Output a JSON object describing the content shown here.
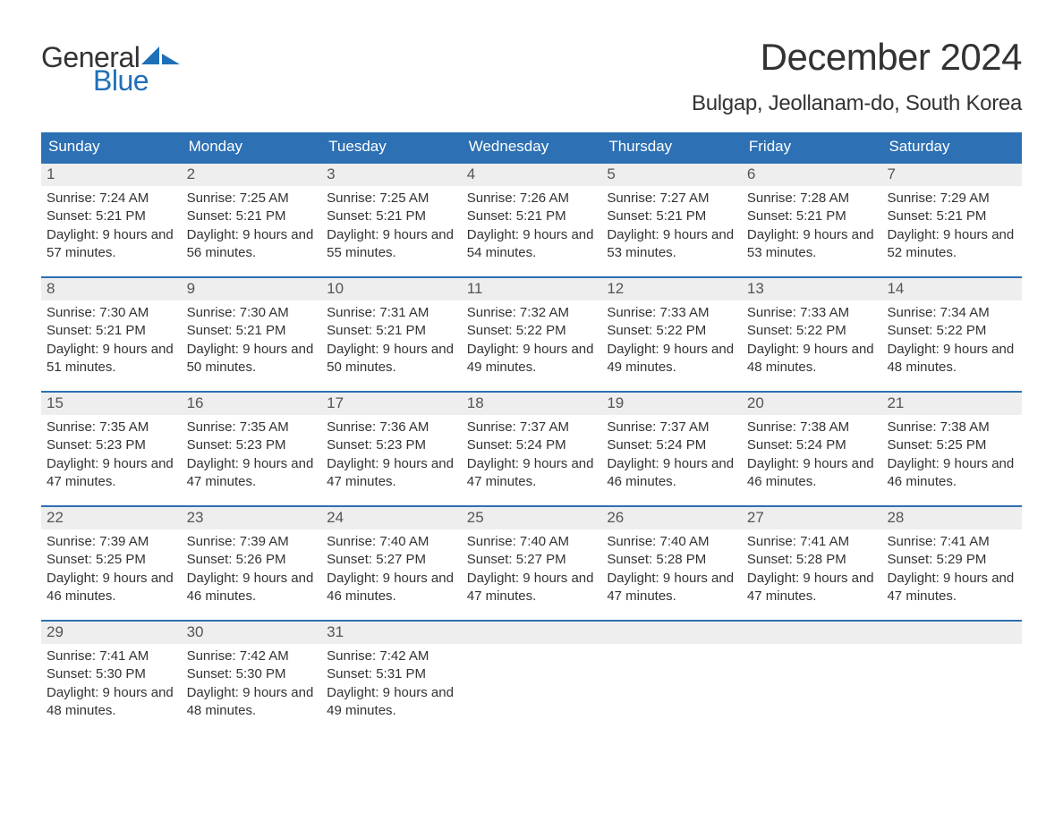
{
  "logo": {
    "text1": "General",
    "text2": "Blue",
    "sail_color": "#2070b8"
  },
  "title": "December 2024",
  "location": "Bulgap, Jeollanam-do, South Korea",
  "colors": {
    "header_bg": "#2d70b3",
    "header_text": "#ffffff",
    "week_border": "#2d70b3",
    "daynum_bg": "#eeeeee",
    "text": "#333333"
  },
  "dow": [
    "Sunday",
    "Monday",
    "Tuesday",
    "Wednesday",
    "Thursday",
    "Friday",
    "Saturday"
  ],
  "weeks": [
    [
      {
        "n": "1",
        "sunrise": "7:24 AM",
        "sunset": "5:21 PM",
        "dl": "9 hours and 57 minutes."
      },
      {
        "n": "2",
        "sunrise": "7:25 AM",
        "sunset": "5:21 PM",
        "dl": "9 hours and 56 minutes."
      },
      {
        "n": "3",
        "sunrise": "7:25 AM",
        "sunset": "5:21 PM",
        "dl": "9 hours and 55 minutes."
      },
      {
        "n": "4",
        "sunrise": "7:26 AM",
        "sunset": "5:21 PM",
        "dl": "9 hours and 54 minutes."
      },
      {
        "n": "5",
        "sunrise": "7:27 AM",
        "sunset": "5:21 PM",
        "dl": "9 hours and 53 minutes."
      },
      {
        "n": "6",
        "sunrise": "7:28 AM",
        "sunset": "5:21 PM",
        "dl": "9 hours and 53 minutes."
      },
      {
        "n": "7",
        "sunrise": "7:29 AM",
        "sunset": "5:21 PM",
        "dl": "9 hours and 52 minutes."
      }
    ],
    [
      {
        "n": "8",
        "sunrise": "7:30 AM",
        "sunset": "5:21 PM",
        "dl": "9 hours and 51 minutes."
      },
      {
        "n": "9",
        "sunrise": "7:30 AM",
        "sunset": "5:21 PM",
        "dl": "9 hours and 50 minutes."
      },
      {
        "n": "10",
        "sunrise": "7:31 AM",
        "sunset": "5:21 PM",
        "dl": "9 hours and 50 minutes."
      },
      {
        "n": "11",
        "sunrise": "7:32 AM",
        "sunset": "5:22 PM",
        "dl": "9 hours and 49 minutes."
      },
      {
        "n": "12",
        "sunrise": "7:33 AM",
        "sunset": "5:22 PM",
        "dl": "9 hours and 49 minutes."
      },
      {
        "n": "13",
        "sunrise": "7:33 AM",
        "sunset": "5:22 PM",
        "dl": "9 hours and 48 minutes."
      },
      {
        "n": "14",
        "sunrise": "7:34 AM",
        "sunset": "5:22 PM",
        "dl": "9 hours and 48 minutes."
      }
    ],
    [
      {
        "n": "15",
        "sunrise": "7:35 AM",
        "sunset": "5:23 PM",
        "dl": "9 hours and 47 minutes."
      },
      {
        "n": "16",
        "sunrise": "7:35 AM",
        "sunset": "5:23 PM",
        "dl": "9 hours and 47 minutes."
      },
      {
        "n": "17",
        "sunrise": "7:36 AM",
        "sunset": "5:23 PM",
        "dl": "9 hours and 47 minutes."
      },
      {
        "n": "18",
        "sunrise": "7:37 AM",
        "sunset": "5:24 PM",
        "dl": "9 hours and 47 minutes."
      },
      {
        "n": "19",
        "sunrise": "7:37 AM",
        "sunset": "5:24 PM",
        "dl": "9 hours and 46 minutes."
      },
      {
        "n": "20",
        "sunrise": "7:38 AM",
        "sunset": "5:24 PM",
        "dl": "9 hours and 46 minutes."
      },
      {
        "n": "21",
        "sunrise": "7:38 AM",
        "sunset": "5:25 PM",
        "dl": "9 hours and 46 minutes."
      }
    ],
    [
      {
        "n": "22",
        "sunrise": "7:39 AM",
        "sunset": "5:25 PM",
        "dl": "9 hours and 46 minutes."
      },
      {
        "n": "23",
        "sunrise": "7:39 AM",
        "sunset": "5:26 PM",
        "dl": "9 hours and 46 minutes."
      },
      {
        "n": "24",
        "sunrise": "7:40 AM",
        "sunset": "5:27 PM",
        "dl": "9 hours and 46 minutes."
      },
      {
        "n": "25",
        "sunrise": "7:40 AM",
        "sunset": "5:27 PM",
        "dl": "9 hours and 47 minutes."
      },
      {
        "n": "26",
        "sunrise": "7:40 AM",
        "sunset": "5:28 PM",
        "dl": "9 hours and 47 minutes."
      },
      {
        "n": "27",
        "sunrise": "7:41 AM",
        "sunset": "5:28 PM",
        "dl": "9 hours and 47 minutes."
      },
      {
        "n": "28",
        "sunrise": "7:41 AM",
        "sunset": "5:29 PM",
        "dl": "9 hours and 47 minutes."
      }
    ],
    [
      {
        "n": "29",
        "sunrise": "7:41 AM",
        "sunset": "5:30 PM",
        "dl": "9 hours and 48 minutes."
      },
      {
        "n": "30",
        "sunrise": "7:42 AM",
        "sunset": "5:30 PM",
        "dl": "9 hours and 48 minutes."
      },
      {
        "n": "31",
        "sunrise": "7:42 AM",
        "sunset": "5:31 PM",
        "dl": "9 hours and 49 minutes."
      },
      {
        "empty": true
      },
      {
        "empty": true
      },
      {
        "empty": true
      },
      {
        "empty": true
      }
    ]
  ],
  "labels": {
    "sunrise": "Sunrise: ",
    "sunset": "Sunset: ",
    "daylight": "Daylight: "
  }
}
